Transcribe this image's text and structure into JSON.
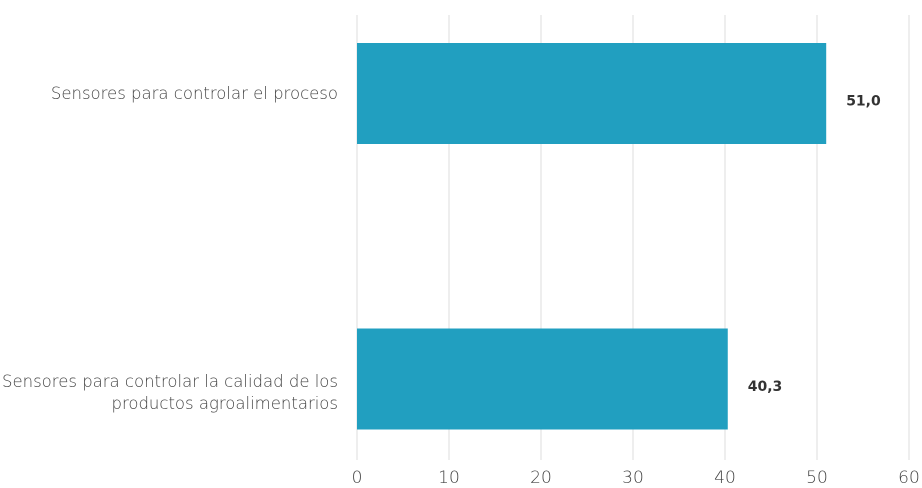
{
  "chart_data": {
    "type": "bar",
    "orientation": "horizontal",
    "categories": [
      "Sensores para controlar el proceso",
      "Sensores para controlar la calidad de los productos agroalimentarios"
    ],
    "values": [
      51.0,
      40.3
    ],
    "value_labels": [
      "51,0",
      "40,3"
    ],
    "color": "#219fc0",
    "xlim": [
      0,
      60
    ],
    "xticks": [
      0,
      10,
      20,
      30,
      40,
      50,
      60
    ],
    "grid": true
  }
}
